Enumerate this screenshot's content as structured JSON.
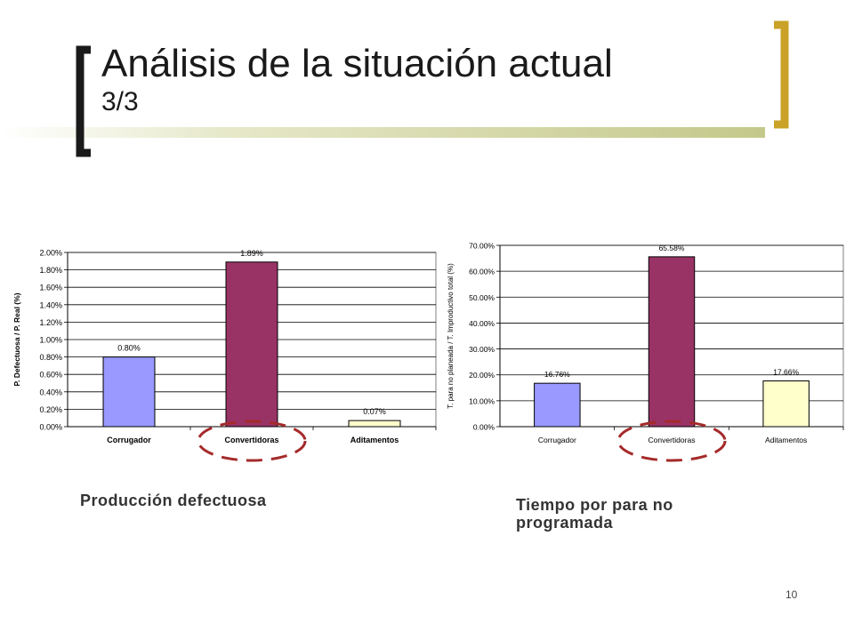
{
  "slide": {
    "title_line1": "Análisis de la situación actual",
    "title_line2": "3/3",
    "caption_left": "Producción defectuosa",
    "caption_right_line1": "Tiempo por para no",
    "caption_right_line2": "programada",
    "page_number": "10",
    "accent_color": "#c9a227",
    "bracket_color": "#1a1a1a",
    "highlight_color": "#a52a2a"
  },
  "chart_data": [
    {
      "type": "bar",
      "categories": [
        "Corrugador",
        "Convertidoras",
        "Aditamentos"
      ],
      "values": [
        0.8,
        1.89,
        0.07
      ],
      "data_labels": [
        "0.80%",
        "1.89%",
        "0.07%"
      ],
      "ylabel": "P. Defectuosa / P. Real (%)",
      "ylim": [
        0,
        2.0
      ],
      "yticks": [
        "0.00%",
        "0.20%",
        "0.40%",
        "0.60%",
        "0.80%",
        "1.00%",
        "1.20%",
        "1.40%",
        "1.60%",
        "1.80%",
        "2.00%"
      ],
      "bar_colors": [
        "#9999ff",
        "#993366",
        "#ffffcc"
      ],
      "grid": true,
      "highlighted_category": "Convertidoras"
    },
    {
      "type": "bar",
      "categories": [
        "Corrugador",
        "Convertidoras",
        "Aditamentos"
      ],
      "values": [
        16.76,
        65.58,
        17.66
      ],
      "data_labels": [
        "16.76%",
        "65.58%",
        "17.66%"
      ],
      "ylabel": "T. para no planeada / T. Improductivo total (%)",
      "ylim": [
        0,
        70
      ],
      "yticks": [
        "0.00%",
        "10.00%",
        "20.00%",
        "30.00%",
        "40.00%",
        "50.00%",
        "60.00%",
        "70.00%"
      ],
      "bar_colors": [
        "#9999ff",
        "#993366",
        "#ffffcc"
      ],
      "grid": true,
      "highlighted_category": "Convertidoras"
    }
  ]
}
